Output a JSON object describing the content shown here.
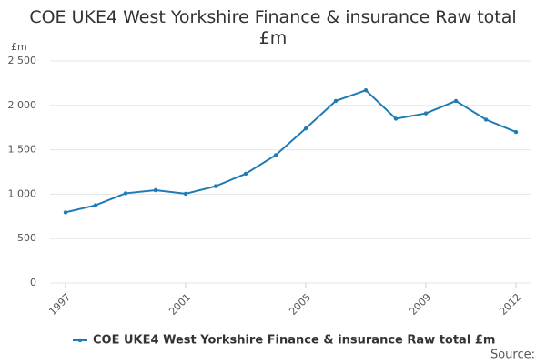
{
  "chart_data": {
    "type": "line",
    "title": "COE UKE4 West Yorkshire Finance & insurance Raw total £m",
    "y_label": "£m",
    "source": "Source:",
    "x": [
      1997,
      1998,
      1999,
      2000,
      2001,
      2002,
      2003,
      2004,
      2005,
      2006,
      2007,
      2008,
      2009,
      2010,
      2011,
      2012
    ],
    "series": [
      {
        "name": "COE UKE4 West Yorkshire Finance & insurance Raw total £m",
        "color": "#1f7bb6",
        "values": [
          795,
          875,
          1010,
          1045,
          1005,
          1090,
          1230,
          1440,
          1740,
          2050,
          2170,
          1850,
          1910,
          2050,
          1840,
          1700
        ]
      }
    ],
    "xlim": [
      1997,
      2012
    ],
    "xticks": [
      1997,
      2001,
      2005,
      2009,
      2012
    ],
    "ylim": [
      0,
      2500
    ],
    "yticks": [
      0,
      500,
      {
        "value": 1000,
        "label": "1 000"
      },
      {
        "value": 1500,
        "label": "1 500"
      },
      {
        "value": 2000,
        "label": "2 000"
      },
      {
        "value": 2500,
        "label": "2 500"
      }
    ],
    "grid": true
  }
}
